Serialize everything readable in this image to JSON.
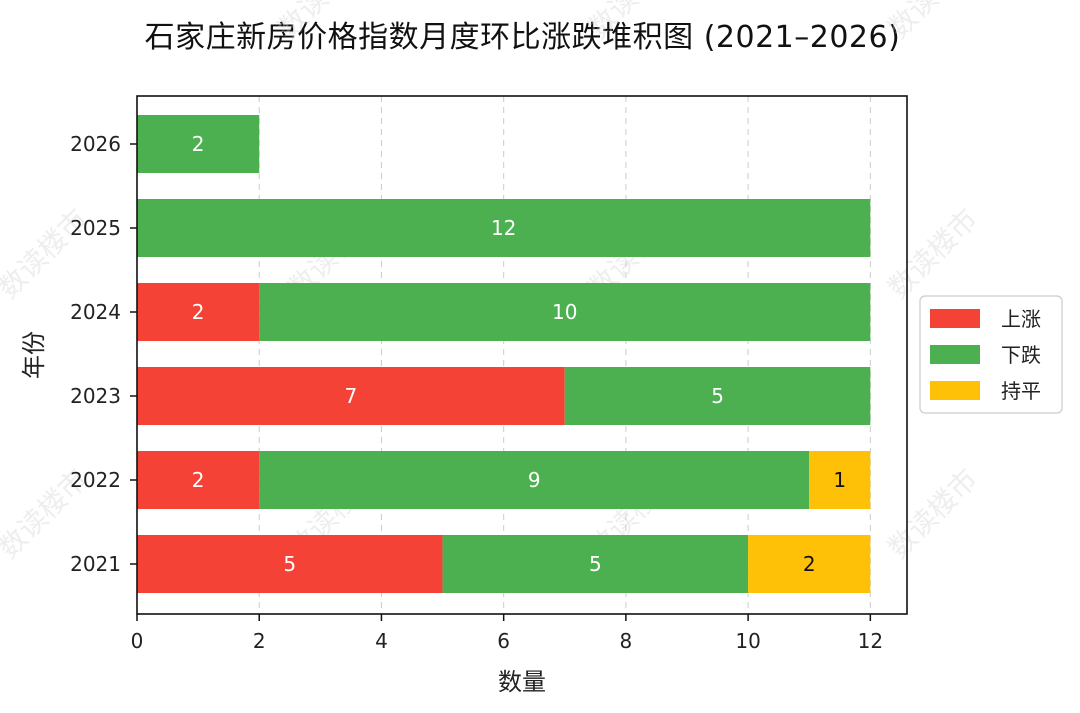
{
  "chart_data": {
    "type": "bar",
    "orientation": "horizontal",
    "stacked": true,
    "title": "石家庄新房价格指数月度环比涨跌堆积图 (2021–2026)",
    "xlabel": "数量",
    "ylabel": "年份",
    "categories": [
      "2021",
      "2022",
      "2023",
      "2024",
      "2025",
      "2026"
    ],
    "series": [
      {
        "name": "上涨",
        "color": "#f44336",
        "label_color": "#ffffff",
        "values": [
          5,
          2,
          7,
          2,
          0,
          0
        ]
      },
      {
        "name": "下跌",
        "color": "#4caf50",
        "label_color": "#ffffff",
        "values": [
          5,
          9,
          5,
          10,
          12,
          2
        ]
      },
      {
        "name": "持平",
        "color": "#ffc107",
        "label_color": "#111111",
        "values": [
          2,
          1,
          0,
          0,
          0,
          0
        ]
      }
    ],
    "xlim": [
      0,
      12.6
    ],
    "xticks": [
      0,
      2,
      4,
      6,
      8,
      10,
      12
    ],
    "grid": "x-dashed",
    "legend_position": "right"
  },
  "watermark": "数读楼市"
}
